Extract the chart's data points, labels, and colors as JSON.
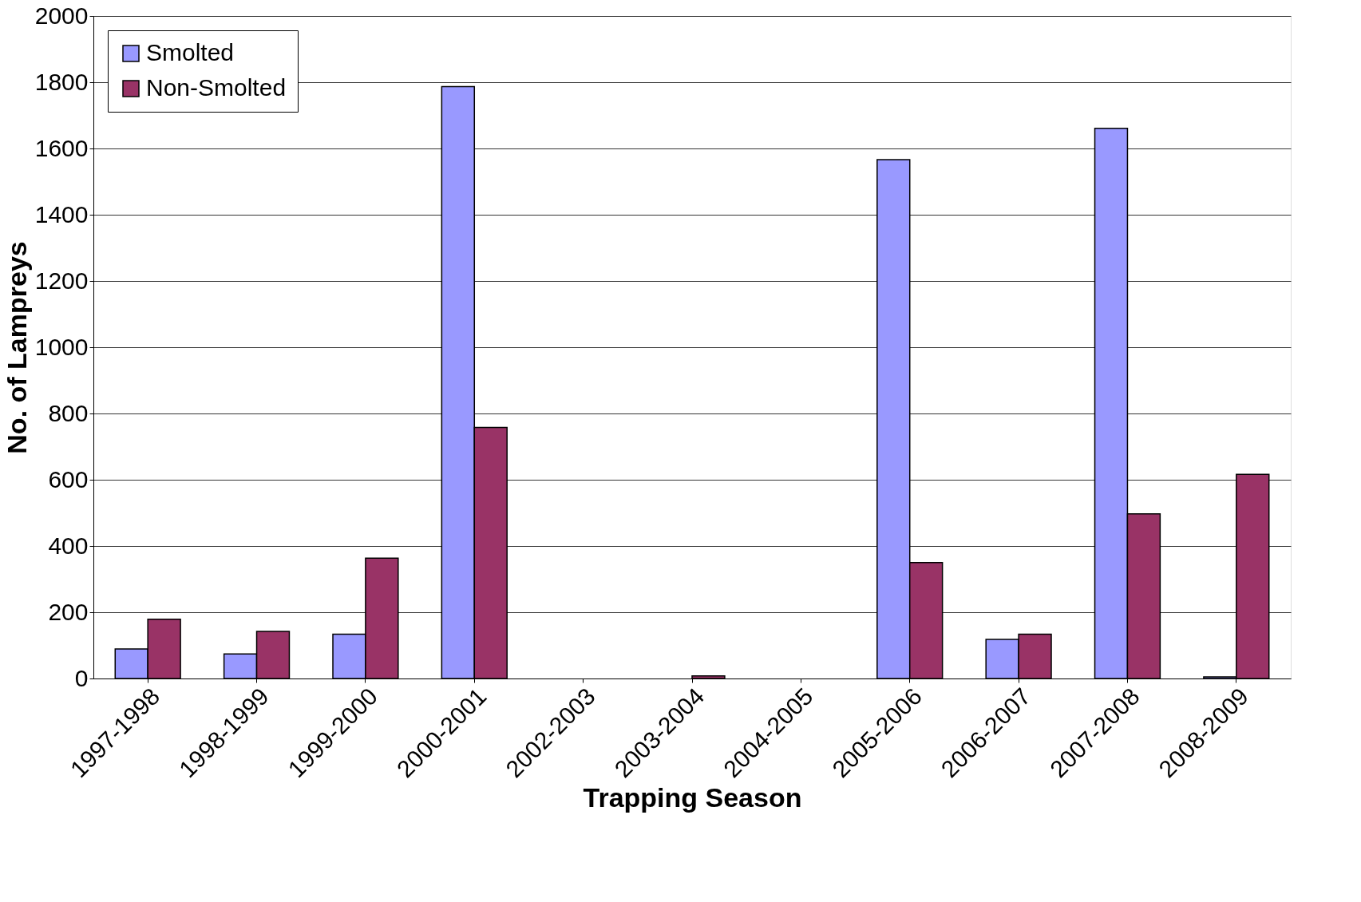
{
  "chart_data": {
    "type": "bar",
    "xlabel": "Trapping Season",
    "ylabel": "No. of Lampreys",
    "categories": [
      "1997-1998",
      "1998-1999",
      "1999-2000",
      "2000-2001",
      "2002-2003",
      "2003-2004",
      "2004-2005",
      "2005-2006",
      "2006-2007",
      "2007-2008",
      "2008-2009"
    ],
    "series": [
      {
        "name": "Smolted",
        "color": "#9999ff",
        "values": [
          89,
          74,
          134,
          1787,
          0,
          0,
          0,
          1566,
          118,
          1661,
          5
        ]
      },
      {
        "name": "Non-Smolted",
        "color": "#993366",
        "values": [
          179,
          142,
          363,
          758,
          0,
          8,
          0,
          350,
          134,
          497,
          616
        ]
      }
    ],
    "ylim": [
      0,
      2000
    ],
    "yticks": [
      0,
      200,
      400,
      600,
      800,
      1000,
      1200,
      1400,
      1600,
      1800,
      2000
    ],
    "grid": "y",
    "legend": "top left"
  }
}
